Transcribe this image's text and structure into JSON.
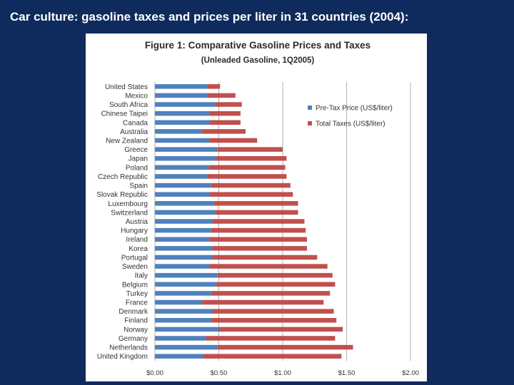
{
  "slide": {
    "title": "Car culture: gasoline taxes and prices per liter in 31 countries (2004):"
  },
  "chart_data": {
    "type": "bar",
    "orientation": "horizontal",
    "stacked": true,
    "title": "Figure 1: Comparative Gasoline Prices and Taxes",
    "subtitle": "(Unleaded Gasoline, 1Q2005)",
    "xlim": [
      0,
      2
    ],
    "x_ticks": [
      "$0.00",
      "$0.50",
      "$1.00",
      "$1.50",
      "$2.00"
    ],
    "x_tick_values": [
      0,
      0.5,
      1,
      1.5,
      2
    ],
    "grid": "vertical",
    "legend_position": "top-right",
    "categories": [
      "United States",
      "Mexico",
      "South Africa",
      "Chinese Taipei",
      "Canada",
      "Australia",
      "New Zealand",
      "Greece",
      "Japan",
      "Poland",
      "Czech Republic",
      "Spain",
      "Slovak Republic",
      "Luxembourg",
      "Switzerland",
      "Austria",
      "Hungary",
      "Ireland",
      "Korea",
      "Portugal",
      "Sweden",
      "Italy",
      "Belgium",
      "Turkey",
      "France",
      "Denmark",
      "Finland",
      "Norway",
      "Germany",
      "Netherlands",
      "United Kingdom"
    ],
    "series": [
      {
        "name": "Pre-Tax Price (US$/liter)",
        "color": "#4f81bd",
        "values": [
          0.41,
          0.41,
          0.47,
          0.43,
          0.43,
          0.37,
          0.43,
          0.49,
          0.48,
          0.42,
          0.41,
          0.44,
          0.43,
          0.46,
          0.47,
          0.45,
          0.44,
          0.43,
          0.45,
          0.45,
          0.43,
          0.49,
          0.48,
          0.44,
          0.37,
          0.45,
          0.44,
          0.5,
          0.4,
          0.49,
          0.38
        ]
      },
      {
        "name": "Total Taxes (US$/liter)",
        "color": "#c0504d",
        "values": [
          0.1,
          0.22,
          0.21,
          0.24,
          0.24,
          0.34,
          0.37,
          0.51,
          0.55,
          0.6,
          0.62,
          0.62,
          0.65,
          0.66,
          0.65,
          0.72,
          0.74,
          0.76,
          0.74,
          0.82,
          0.92,
          0.9,
          0.93,
          0.93,
          0.95,
          0.95,
          0.98,
          0.97,
          1.01,
          1.06,
          1.08
        ]
      }
    ]
  }
}
